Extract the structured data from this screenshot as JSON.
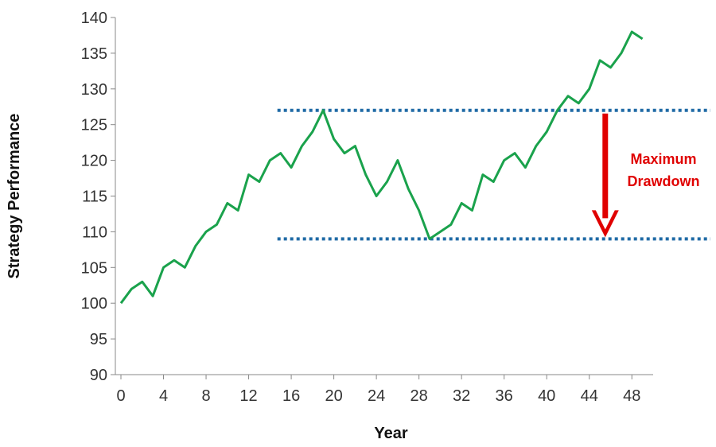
{
  "chart_data": {
    "type": "line",
    "title": "",
    "xlabel": "Year",
    "ylabel": "Strategy Performance",
    "xlim": [
      0,
      50
    ],
    "ylim": [
      90,
      140
    ],
    "x_ticks": [
      "0",
      "4",
      "8",
      "12",
      "16",
      "20",
      "24",
      "28",
      "32",
      "36",
      "40",
      "44",
      "48"
    ],
    "y_ticks": [
      "90",
      "95",
      "100",
      "105",
      "110",
      "115",
      "120",
      "125",
      "130",
      "135",
      "140"
    ],
    "grid": false,
    "legend": "none",
    "series": [
      {
        "color": "#1aa24c",
        "x": [
          0,
          1,
          2,
          3,
          4,
          5,
          6,
          7,
          8,
          9,
          10,
          11,
          12,
          13,
          14,
          15,
          16,
          17,
          18,
          19,
          20,
          21,
          22,
          23,
          24,
          25,
          26,
          27,
          28,
          29,
          30,
          31,
          32,
          33,
          34,
          35,
          36,
          37,
          38,
          39,
          40,
          41,
          42,
          43,
          44,
          45,
          46,
          47,
          48,
          49
        ],
        "values": [
          100,
          102,
          103,
          101,
          105,
          106,
          105,
          108,
          110,
          111,
          114,
          113,
          118,
          117,
          120,
          121,
          119,
          122,
          124,
          127,
          123,
          121,
          122,
          118,
          115,
          117,
          120,
          116,
          113,
          109,
          110,
          111,
          114,
          113,
          118,
          117,
          120,
          121,
          119,
          122,
          124,
          127,
          129,
          128,
          130,
          134,
          133,
          135,
          138,
          137
        ]
      }
    ],
    "annotations": {
      "peak_level": 127,
      "trough_level": 109,
      "reference_line_x_start": 15,
      "reference_line_x_end": 50,
      "arrow_x": 45.5,
      "label_lines": [
        "Maximum",
        "Drawdown"
      ],
      "label_color": "#e00000",
      "reference_line_color": "#1f6aa5"
    }
  }
}
